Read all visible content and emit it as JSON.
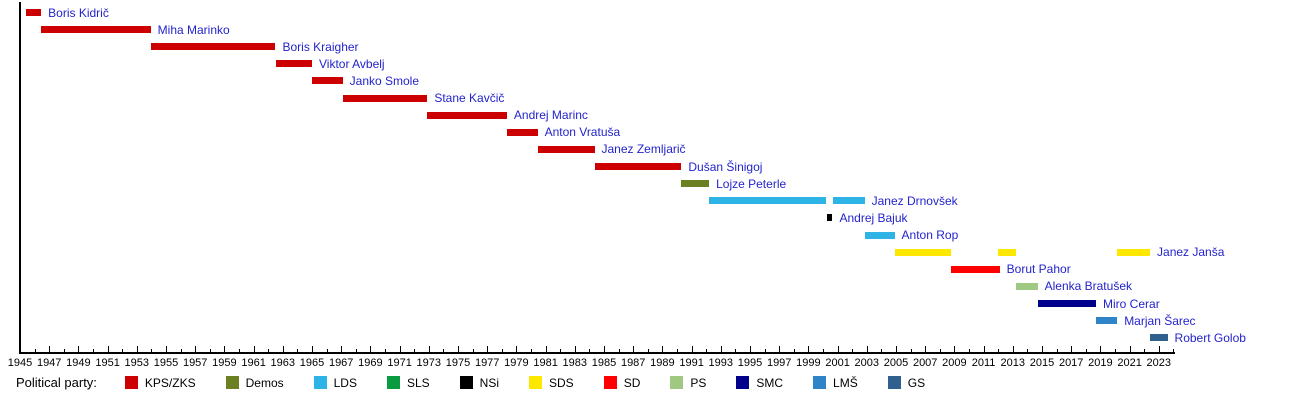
{
  "legend": {
    "label": "Political party:",
    "items": [
      {
        "name": "KPS/ZKS",
        "color": "#cc0000"
      },
      {
        "name": "Demos",
        "color": "#6b8020"
      },
      {
        "name": "LDS",
        "color": "#2eb3e7"
      },
      {
        "name": "SLS",
        "color": "#0a9a40"
      },
      {
        "name": "NSi",
        "color": "#000000"
      },
      {
        "name": "SDS",
        "color": "#ffe800"
      },
      {
        "name": "SD",
        "color": "#ff0000"
      },
      {
        "name": "PS",
        "color": "#9fc880"
      },
      {
        "name": "SMC",
        "color": "#00008b"
      },
      {
        "name": "LMŠ",
        "color": "#2e84c6"
      },
      {
        "name": "GS",
        "color": "#2f608e"
      }
    ]
  },
  "chart_data": {
    "type": "bar",
    "subtype": "horizontal-timeline-gantt",
    "title": "",
    "xlabel": "",
    "ylabel": "",
    "x_axis": {
      "start": 1945,
      "end": 2024,
      "major_tick_step": 2,
      "minor_tick_step": 1,
      "tick_labels": [
        1945,
        1947,
        1949,
        1951,
        1953,
        1955,
        1957,
        1959,
        1961,
        1963,
        1965,
        1967,
        1969,
        1971,
        1973,
        1975,
        1977,
        1979,
        1981,
        1983,
        1985,
        1987,
        1989,
        1991,
        1993,
        1995,
        1997,
        1999,
        2001,
        2003,
        2005,
        2007,
        2009,
        2011,
        2013,
        2015,
        2017,
        2019,
        2021,
        2023
      ]
    },
    "grid": false,
    "legend_position": "bottom",
    "party_colors": {
      "KPS/ZKS": "#cc0000",
      "Demos": "#6b8020",
      "LDS": "#2eb3e7",
      "SLS": "#0a9a40",
      "NSi": "#000000",
      "SDS": "#ffe800",
      "SD": "#ff0000",
      "PS": "#9fc880",
      "SMC": "#00008b",
      "LMŠ": "#2e84c6",
      "GS": "#2f608e"
    },
    "items": [
      {
        "name": "Boris Kidrič",
        "party": "KPS/ZKS",
        "terms": [
          [
            1945.4,
            1946.45
          ]
        ]
      },
      {
        "name": "Miha Marinko",
        "party": "KPS/ZKS",
        "terms": [
          [
            1946.45,
            1953.95
          ]
        ]
      },
      {
        "name": "Boris Kraigher",
        "party": "KPS/ZKS",
        "terms": [
          [
            1953.95,
            1962.5
          ]
        ]
      },
      {
        "name": "Viktor Avbelj",
        "party": "KPS/ZKS",
        "terms": [
          [
            1962.5,
            1965.0
          ]
        ]
      },
      {
        "name": "Janko Smole",
        "party": "KPS/ZKS",
        "terms": [
          [
            1965.0,
            1967.1
          ]
        ]
      },
      {
        "name": "Stane Kavčič",
        "party": "KPS/ZKS",
        "terms": [
          [
            1967.1,
            1972.9
          ]
        ]
      },
      {
        "name": "Andrej Marinc",
        "party": "KPS/ZKS",
        "terms": [
          [
            1972.9,
            1978.35
          ]
        ]
      },
      {
        "name": "Anton Vratuša",
        "party": "KPS/ZKS",
        "terms": [
          [
            1978.35,
            1980.45
          ]
        ]
      },
      {
        "name": "Janez Zemljarič",
        "party": "KPS/ZKS",
        "terms": [
          [
            1980.45,
            1984.35
          ]
        ]
      },
      {
        "name": "Dušan Šinigoj",
        "party": "KPS/ZKS",
        "terms": [
          [
            1984.35,
            1990.3
          ]
        ]
      },
      {
        "name": "Lojze Peterle",
        "party": "Demos",
        "terms": [
          [
            1990.3,
            1992.2
          ]
        ]
      },
      {
        "name": "Janez Drnovšek",
        "party": "LDS",
        "terms": [
          [
            1992.2,
            2000.2
          ],
          [
            2000.7,
            2002.85
          ]
        ]
      },
      {
        "name": "Andrej Bajuk",
        "party": "NSi",
        "terms": [
          [
            2000.25,
            2000.65
          ]
        ]
      },
      {
        "name": "Anton Rop",
        "party": "LDS",
        "terms": [
          [
            2002.85,
            2004.9
          ]
        ]
      },
      {
        "name": "Janez Janša",
        "party": "SDS",
        "terms": [
          [
            2004.9,
            2008.8
          ],
          [
            2012.0,
            2013.2
          ],
          [
            2020.15,
            2022.4
          ]
        ]
      },
      {
        "name": "Borut Pahor",
        "party": "SD",
        "terms": [
          [
            2008.8,
            2012.1
          ]
        ]
      },
      {
        "name": "Alenka Bratušek",
        "party": "PS",
        "terms": [
          [
            2013.2,
            2014.7
          ]
        ]
      },
      {
        "name": "Miro Cerar",
        "party": "SMC",
        "terms": [
          [
            2014.7,
            2018.7
          ]
        ]
      },
      {
        "name": "Marjan Šarec",
        "party": "LMŠ",
        "terms": [
          [
            2018.7,
            2020.15
          ]
        ]
      },
      {
        "name": "Robert Golob",
        "party": "GS",
        "terms": [
          [
            2022.4,
            2023.6
          ]
        ]
      }
    ]
  }
}
